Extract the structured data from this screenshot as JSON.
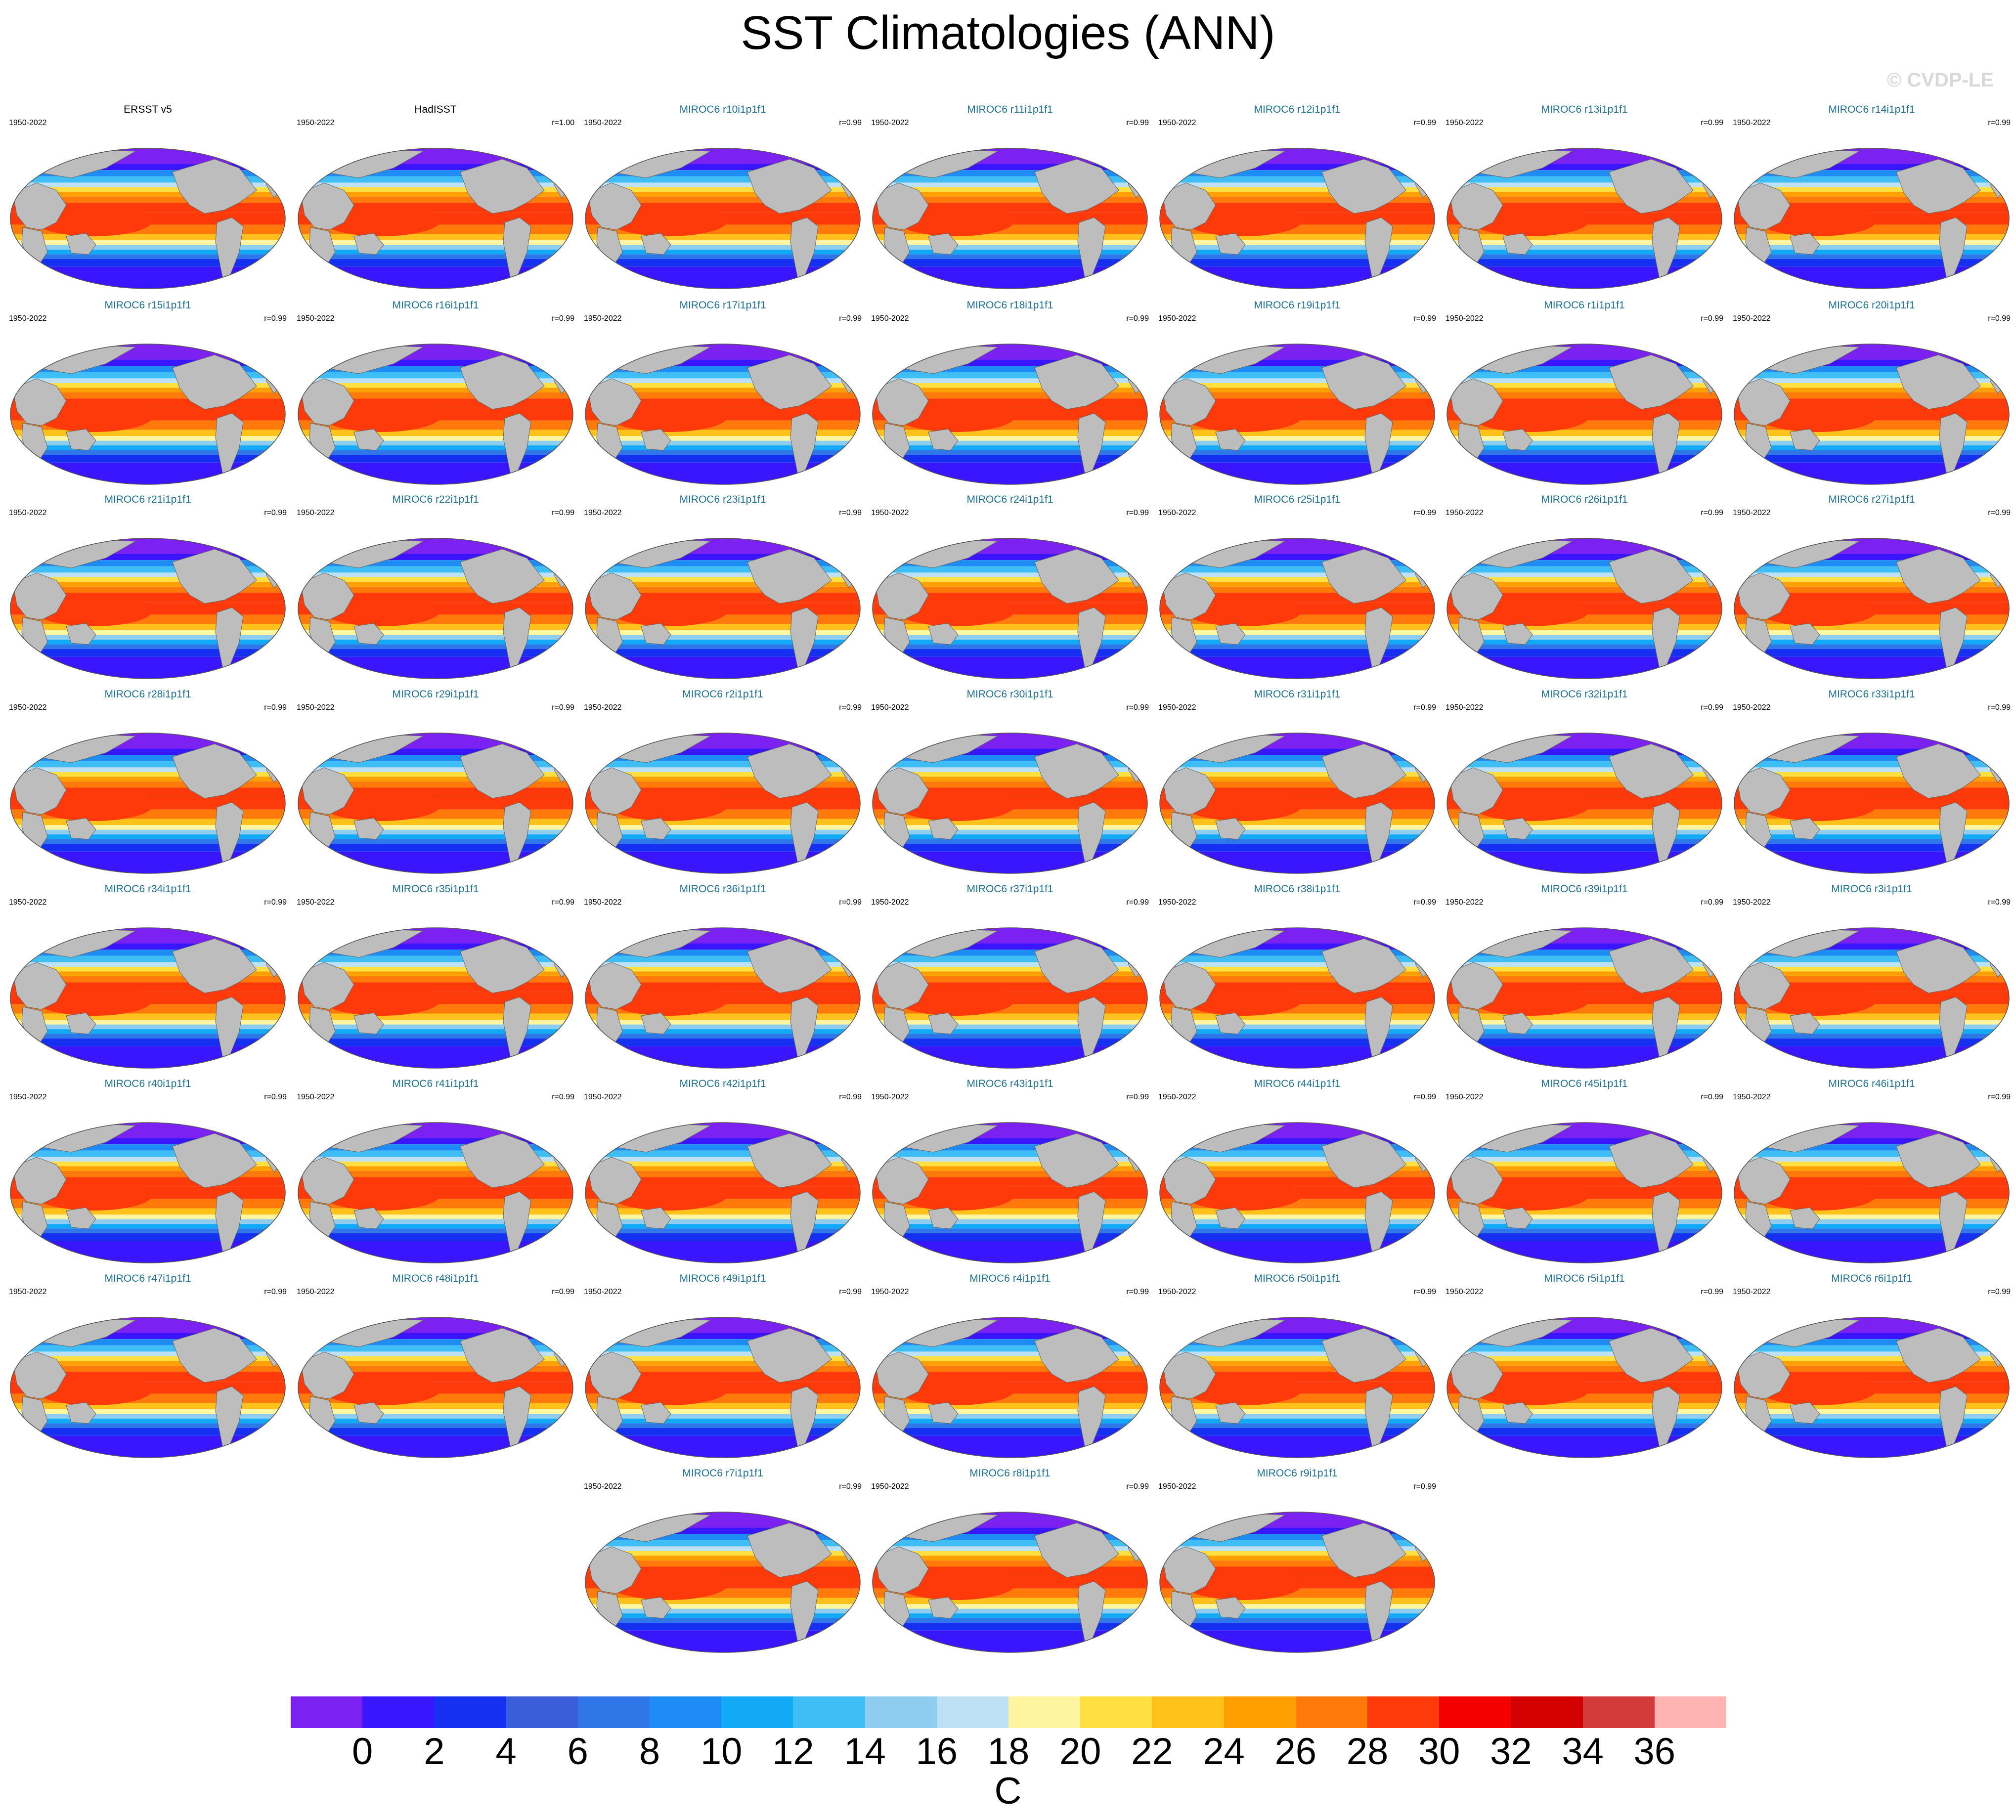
{
  "figure": {
    "title": "SST Climatologies (ANN)",
    "watermark": "© CVDP-LE"
  },
  "chart_data": {
    "type": "heatmap",
    "title": "SST Climatologies (ANN)",
    "map_projection": "robinson-like",
    "land_color": "#bdbdbd",
    "panels": [
      {
        "title": "ERSST v5",
        "period": "1950-2022",
        "corr": "",
        "kind": "obs"
      },
      {
        "title": "HadISST",
        "period": "1950-2022",
        "corr": "r=1.00",
        "kind": "obs"
      },
      {
        "title": "MIROC6 r10i1p1f1",
        "period": "1950-2022",
        "corr": "r=0.99",
        "kind": "model"
      },
      {
        "title": "MIROC6 r11i1p1f1",
        "period": "1950-2022",
        "corr": "r=0.99",
        "kind": "model"
      },
      {
        "title": "MIROC6 r12i1p1f1",
        "period": "1950-2022",
        "corr": "r=0.99",
        "kind": "model"
      },
      {
        "title": "MIROC6 r13i1p1f1",
        "period": "1950-2022",
        "corr": "r=0.99",
        "kind": "model"
      },
      {
        "title": "MIROC6 r14i1p1f1",
        "period": "1950-2022",
        "corr": "r=0.99",
        "kind": "model"
      },
      {
        "title": "MIROC6 r15i1p1f1",
        "period": "1950-2022",
        "corr": "r=0.99",
        "kind": "model"
      },
      {
        "title": "MIROC6 r16i1p1f1",
        "period": "1950-2022",
        "corr": "r=0.99",
        "kind": "model"
      },
      {
        "title": "MIROC6 r17i1p1f1",
        "period": "1950-2022",
        "corr": "r=0.99",
        "kind": "model"
      },
      {
        "title": "MIROC6 r18i1p1f1",
        "period": "1950-2022",
        "corr": "r=0.99",
        "kind": "model"
      },
      {
        "title": "MIROC6 r19i1p1f1",
        "period": "1950-2022",
        "corr": "r=0.99",
        "kind": "model"
      },
      {
        "title": "MIROC6 r1i1p1f1",
        "period": "1950-2022",
        "corr": "r=0.99",
        "kind": "model"
      },
      {
        "title": "MIROC6 r20i1p1f1",
        "period": "1950-2022",
        "corr": "r=0.99",
        "kind": "model"
      },
      {
        "title": "MIROC6 r21i1p1f1",
        "period": "1950-2022",
        "corr": "r=0.99",
        "kind": "model"
      },
      {
        "title": "MIROC6 r22i1p1f1",
        "period": "1950-2022",
        "corr": "r=0.99",
        "kind": "model"
      },
      {
        "title": "MIROC6 r23i1p1f1",
        "period": "1950-2022",
        "corr": "r=0.99",
        "kind": "model"
      },
      {
        "title": "MIROC6 r24i1p1f1",
        "period": "1950-2022",
        "corr": "r=0.99",
        "kind": "model"
      },
      {
        "title": "MIROC6 r25i1p1f1",
        "period": "1950-2022",
        "corr": "r=0.99",
        "kind": "model"
      },
      {
        "title": "MIROC6 r26i1p1f1",
        "period": "1950-2022",
        "corr": "r=0.99",
        "kind": "model"
      },
      {
        "title": "MIROC6 r27i1p1f1",
        "period": "1950-2022",
        "corr": "r=0.99",
        "kind": "model"
      },
      {
        "title": "MIROC6 r28i1p1f1",
        "period": "1950-2022",
        "corr": "r=0.99",
        "kind": "model"
      },
      {
        "title": "MIROC6 r29i1p1f1",
        "period": "1950-2022",
        "corr": "r=0.99",
        "kind": "model"
      },
      {
        "title": "MIROC6 r2i1p1f1",
        "period": "1950-2022",
        "corr": "r=0.99",
        "kind": "model"
      },
      {
        "title": "MIROC6 r30i1p1f1",
        "period": "1950-2022",
        "corr": "r=0.99",
        "kind": "model"
      },
      {
        "title": "MIROC6 r31i1p1f1",
        "period": "1950-2022",
        "corr": "r=0.99",
        "kind": "model"
      },
      {
        "title": "MIROC6 r32i1p1f1",
        "period": "1950-2022",
        "corr": "r=0.99",
        "kind": "model"
      },
      {
        "title": "MIROC6 r33i1p1f1",
        "period": "1950-2022",
        "corr": "r=0.99",
        "kind": "model"
      },
      {
        "title": "MIROC6 r34i1p1f1",
        "period": "1950-2022",
        "corr": "r=0.99",
        "kind": "model"
      },
      {
        "title": "MIROC6 r35i1p1f1",
        "period": "1950-2022",
        "corr": "r=0.99",
        "kind": "model"
      },
      {
        "title": "MIROC6 r36i1p1f1",
        "period": "1950-2022",
        "corr": "r=0.99",
        "kind": "model"
      },
      {
        "title": "MIROC6 r37i1p1f1",
        "period": "1950-2022",
        "corr": "r=0.99",
        "kind": "model"
      },
      {
        "title": "MIROC6 r38i1p1f1",
        "period": "1950-2022",
        "corr": "r=0.99",
        "kind": "model"
      },
      {
        "title": "MIROC6 r39i1p1f1",
        "period": "1950-2022",
        "corr": "r=0.99",
        "kind": "model"
      },
      {
        "title": "MIROC6 r3i1p1f1",
        "period": "1950-2022",
        "corr": "r=0.99",
        "kind": "model"
      },
      {
        "title": "MIROC6 r40i1p1f1",
        "period": "1950-2022",
        "corr": "r=0.99",
        "kind": "model"
      },
      {
        "title": "MIROC6 r41i1p1f1",
        "period": "1950-2022",
        "corr": "r=0.99",
        "kind": "model"
      },
      {
        "title": "MIROC6 r42i1p1f1",
        "period": "1950-2022",
        "corr": "r=0.99",
        "kind": "model"
      },
      {
        "title": "MIROC6 r43i1p1f1",
        "period": "1950-2022",
        "corr": "r=0.99",
        "kind": "model"
      },
      {
        "title": "MIROC6 r44i1p1f1",
        "period": "1950-2022",
        "corr": "r=0.99",
        "kind": "model"
      },
      {
        "title": "MIROC6 r45i1p1f1",
        "period": "1950-2022",
        "corr": "r=0.99",
        "kind": "model"
      },
      {
        "title": "MIROC6 r46i1p1f1",
        "period": "1950-2022",
        "corr": "r=0.99",
        "kind": "model"
      },
      {
        "title": "MIROC6 r47i1p1f1",
        "period": "1950-2022",
        "corr": "r=0.99",
        "kind": "model"
      },
      {
        "title": "MIROC6 r48i1p1f1",
        "period": "1950-2022",
        "corr": "r=0.99",
        "kind": "model"
      },
      {
        "title": "MIROC6 r49i1p1f1",
        "period": "1950-2022",
        "corr": "r=0.99",
        "kind": "model"
      },
      {
        "title": "MIROC6 r4i1p1f1",
        "period": "1950-2022",
        "corr": "r=0.99",
        "kind": "model"
      },
      {
        "title": "MIROC6 r50i1p1f1",
        "period": "1950-2022",
        "corr": "r=0.99",
        "kind": "model"
      },
      {
        "title": "MIROC6 r5i1p1f1",
        "period": "1950-2022",
        "corr": "r=0.99",
        "kind": "model"
      },
      {
        "title": "MIROC6 r6i1p1f1",
        "period": "1950-2022",
        "corr": "r=0.99",
        "kind": "model"
      },
      {
        "title": "MIROC6 r7i1p1f1",
        "period": "1950-2022",
        "corr": "r=0.99",
        "kind": "model"
      },
      {
        "title": "MIROC6 r8i1p1f1",
        "period": "1950-2022",
        "corr": "r=0.99",
        "kind": "model"
      },
      {
        "title": "MIROC6 r9i1p1f1",
        "period": "1950-2022",
        "corr": "r=0.99",
        "kind": "model"
      }
    ],
    "colorbar": {
      "units": "C",
      "tick_labels": [
        "0",
        "2",
        "4",
        "6",
        "8",
        "10",
        "12",
        "14",
        "16",
        "18",
        "20",
        "22",
        "24",
        "26",
        "28",
        "30",
        "32",
        "34",
        "36"
      ],
      "colors": [
        "#7b22f2",
        "#3a15ff",
        "#1530f0",
        "#3a5ed9",
        "#2f76e8",
        "#1e8cf5",
        "#12aaf7",
        "#3fbef5",
        "#8ecdee",
        "#bde0f5",
        "#fff5a0",
        "#ffe040",
        "#ffc21a",
        "#ffa000",
        "#ff7a0a",
        "#ff3a0a",
        "#f50000",
        "#d20000",
        "#d43a3a",
        "#ffb3b3"
      ]
    }
  }
}
